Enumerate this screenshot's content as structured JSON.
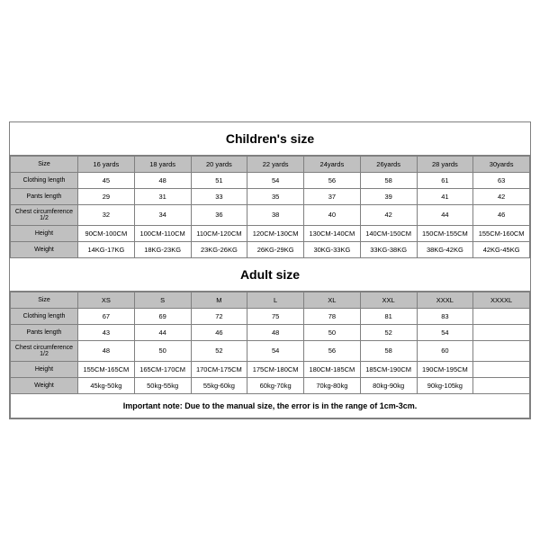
{
  "children": {
    "title": "Children's size",
    "row_labels": [
      "Size",
      "Clothing length",
      "Pants length",
      "Chest circumference 1/2",
      "Height",
      "Weight"
    ],
    "sizes": [
      "16 yards",
      "18 yards",
      "20 yards",
      "22 yards",
      "24yards",
      "26yards",
      "28 yards",
      "30yards"
    ],
    "clothing": [
      "45",
      "48",
      "51",
      "54",
      "56",
      "58",
      "61",
      "63"
    ],
    "pants": [
      "29",
      "31",
      "33",
      "35",
      "37",
      "39",
      "41",
      "42"
    ],
    "chest": [
      "32",
      "34",
      "36",
      "38",
      "40",
      "42",
      "44",
      "46"
    ],
    "height": [
      "90CM-100CM",
      "100CM-110CM",
      "110CM-120CM",
      "120CM-130CM",
      "130CM-140CM",
      "140CM-150CM",
      "150CM-155CM",
      "155CM-160CM"
    ],
    "weight": [
      "14KG-17KG",
      "18KG-23KG",
      "23KG-26KG",
      "26KG-29KG",
      "30KG-33KG",
      "33KG-38KG",
      "38KG-42KG",
      "42KG-45KG"
    ]
  },
  "adult": {
    "title": "Adult size",
    "row_labels": [
      "Size",
      "Clothing length",
      "Pants length",
      "Chest circumference 1/2",
      "Height",
      "Weight"
    ],
    "sizes": [
      "XS",
      "S",
      "M",
      "L",
      "XL",
      "XXL",
      "XXXL",
      "XXXXL"
    ],
    "clothing": [
      "67",
      "69",
      "72",
      "75",
      "78",
      "81",
      "83",
      ""
    ],
    "pants": [
      "43",
      "44",
      "46",
      "48",
      "50",
      "52",
      "54",
      ""
    ],
    "chest": [
      "48",
      "50",
      "52",
      "54",
      "56",
      "58",
      "60",
      ""
    ],
    "height": [
      "155CM-165CM",
      "165CM-170CM",
      "170CM-175CM",
      "175CM-180CM",
      "180CM-185CM",
      "185CM-190CM",
      "190CM-195CM",
      ""
    ],
    "weight": [
      "45kg-50kg",
      "50kg-55kg",
      "55kg-60kg",
      "60kg-70kg",
      "70kg-80kg",
      "80kg-90kg",
      "90kg-105kg",
      ""
    ]
  },
  "note": "Important note: Due to the manual size, the error is in the range of 1cm-3cm.",
  "style": {
    "header_bg": "#c0c0c0",
    "border_color": "#808080",
    "background": "#ffffff",
    "title_fontsize_pt": 14,
    "cell_fontsize_pt": 7.5,
    "note_fontsize_pt": 9,
    "label_col_width_pct": 13
  }
}
